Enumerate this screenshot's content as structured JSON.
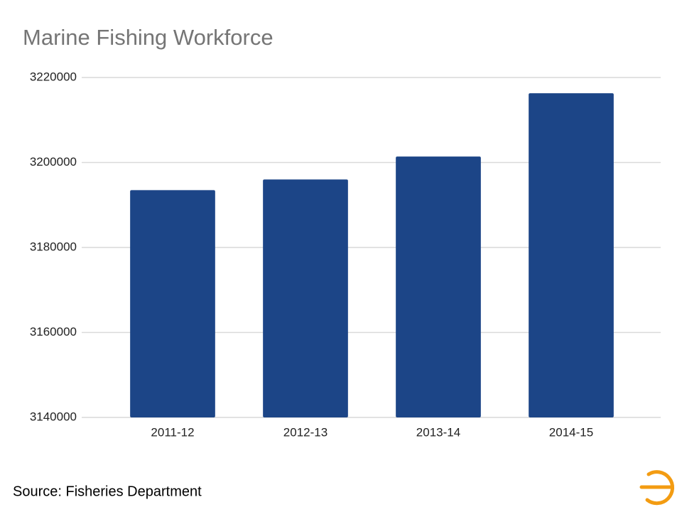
{
  "chart_data": {
    "type": "bar",
    "title": "Marine Fishing Workforce",
    "categories": [
      "2011-12",
      "2012-13",
      "2013-14",
      "2014-15"
    ],
    "values": [
      3193500,
      3196000,
      3201400,
      3216300
    ],
    "color": "#1c4587",
    "ylim": [
      3140000,
      3220000
    ],
    "yticks": [
      3140000,
      3160000,
      3180000,
      3200000,
      3220000
    ],
    "grid": true
  },
  "source": "Source: Fisheries Department"
}
